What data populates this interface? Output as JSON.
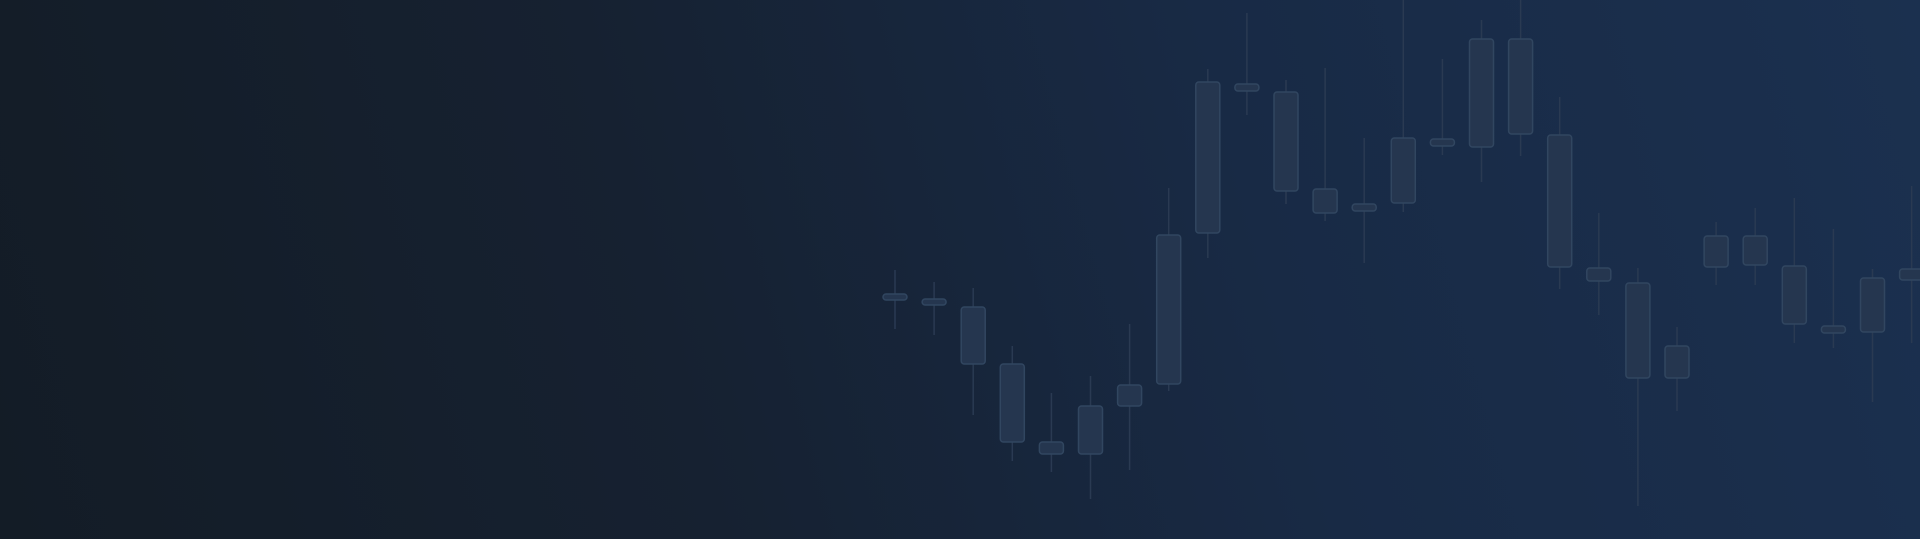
{
  "background": {
    "gradient_start": "#131c26",
    "gradient_end": "#1b304f"
  },
  "chart_data": {
    "type": "candlestick",
    "title": "",
    "xlabel": "",
    "ylabel": "",
    "grid": false,
    "legend": "none",
    "candle_color": "#25364f",
    "wick_color": "#2a3a52",
    "ylim": [
      0,
      539
    ],
    "candles": [
      {
        "open": 245,
        "close": 240,
        "high": 269,
        "low": 210
      },
      {
        "open": 240,
        "close": 238,
        "high": 257,
        "low": 204
      },
      {
        "open": 232,
        "close": 175,
        "high": 251,
        "low": 124
      },
      {
        "open": 175,
        "close": 97,
        "high": 193,
        "low": 78
      },
      {
        "open": 97,
        "close": 85,
        "high": 146,
        "low": 67
      },
      {
        "open": 85,
        "close": 133,
        "high": 163,
        "low": 40
      },
      {
        "open": 133,
        "close": 154,
        "high": 215,
        "low": 69
      },
      {
        "open": 155,
        "close": 304,
        "high": 351,
        "low": 148
      },
      {
        "open": 306,
        "close": 457,
        "high": 470,
        "low": 281
      },
      {
        "open": 448,
        "close": 455,
        "high": 526,
        "low": 424
      },
      {
        "open": 348,
        "close": 447,
        "high": 459,
        "low": 335
      },
      {
        "open": 326,
        "close": 350,
        "high": 471,
        "low": 318
      },
      {
        "open": 328,
        "close": 335,
        "high": 401,
        "low": 276
      },
      {
        "open": 336,
        "close": 401,
        "high": 539,
        "low": 327
      },
      {
        "open": 393,
        "close": 400,
        "high": 480,
        "low": 384
      },
      {
        "open": 392,
        "close": 500,
        "high": 519,
        "low": 357
      },
      {
        "open": 405,
        "close": 500,
        "high": 539,
        "low": 383
      },
      {
        "open": 272,
        "close": 404,
        "high": 442,
        "low": 250
      },
      {
        "open": 258,
        "close": 271,
        "high": 326,
        "low": 224
      },
      {
        "open": 161,
        "close": 256,
        "high": 271,
        "low": 33
      },
      {
        "open": 161,
        "close": 193,
        "high": 212,
        "low": 128
      },
      {
        "open": 272,
        "close": 303,
        "high": 317,
        "low": 254
      },
      {
        "open": 274,
        "close": 303,
        "high": 331,
        "low": 254
      },
      {
        "open": 215,
        "close": 273,
        "high": 341,
        "low": 196
      },
      {
        "open": 206,
        "close": 213,
        "high": 310,
        "low": 191
      },
      {
        "open": 207,
        "close": 261,
        "high": 270,
        "low": 137
      },
      {
        "open": 259,
        "close": 270,
        "high": 353,
        "low": 196
      }
    ]
  }
}
